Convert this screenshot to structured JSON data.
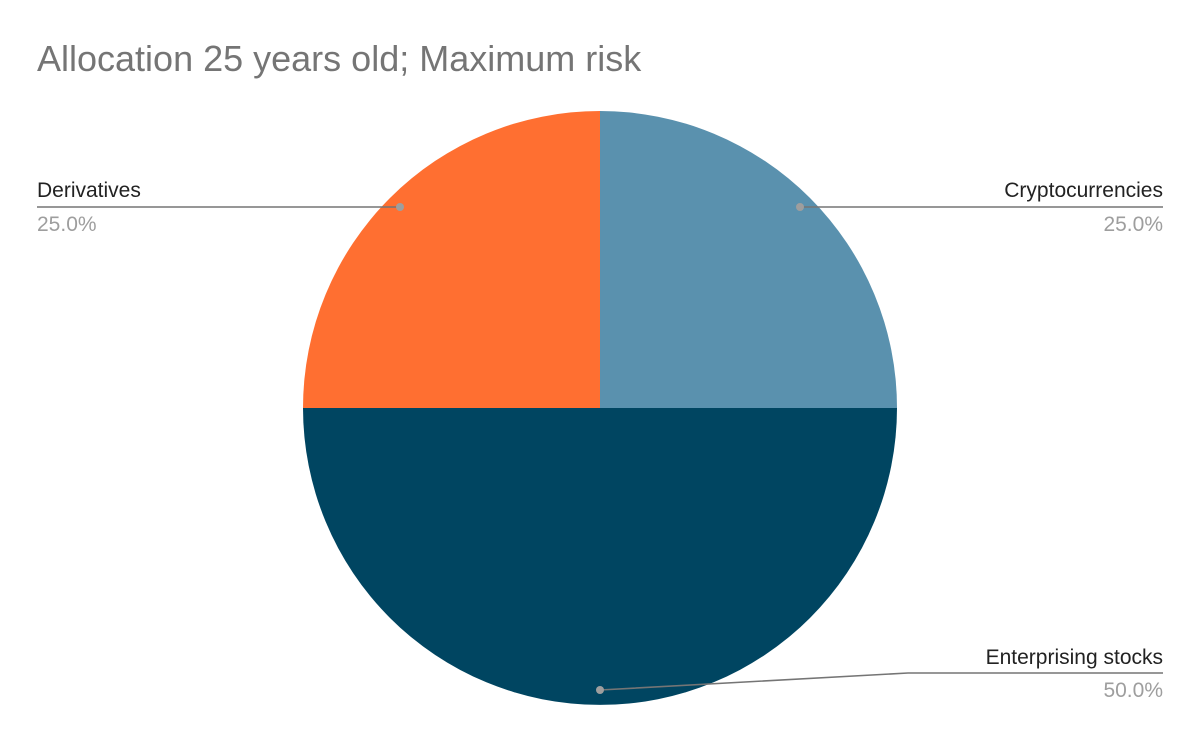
{
  "chart_data": {
    "type": "pie",
    "title": "Allocation 25 years old; Maximum risk",
    "slices": [
      {
        "label": "Cryptocurrencies",
        "value": 25.0,
        "display": "25.0%",
        "color": "#5a91ae"
      },
      {
        "label": "Enterprising stocks",
        "value": 50.0,
        "display": "50.0%",
        "color": "#004561"
      },
      {
        "label": "Derivatives",
        "value": 25.0,
        "display": "25.0%",
        "color": "#ff6f31"
      }
    ],
    "start_angle": "12 o'clock",
    "direction": "clockwise",
    "legend": "none",
    "label_style": "leader lines with name and percentage",
    "leader_color": "#757575"
  }
}
